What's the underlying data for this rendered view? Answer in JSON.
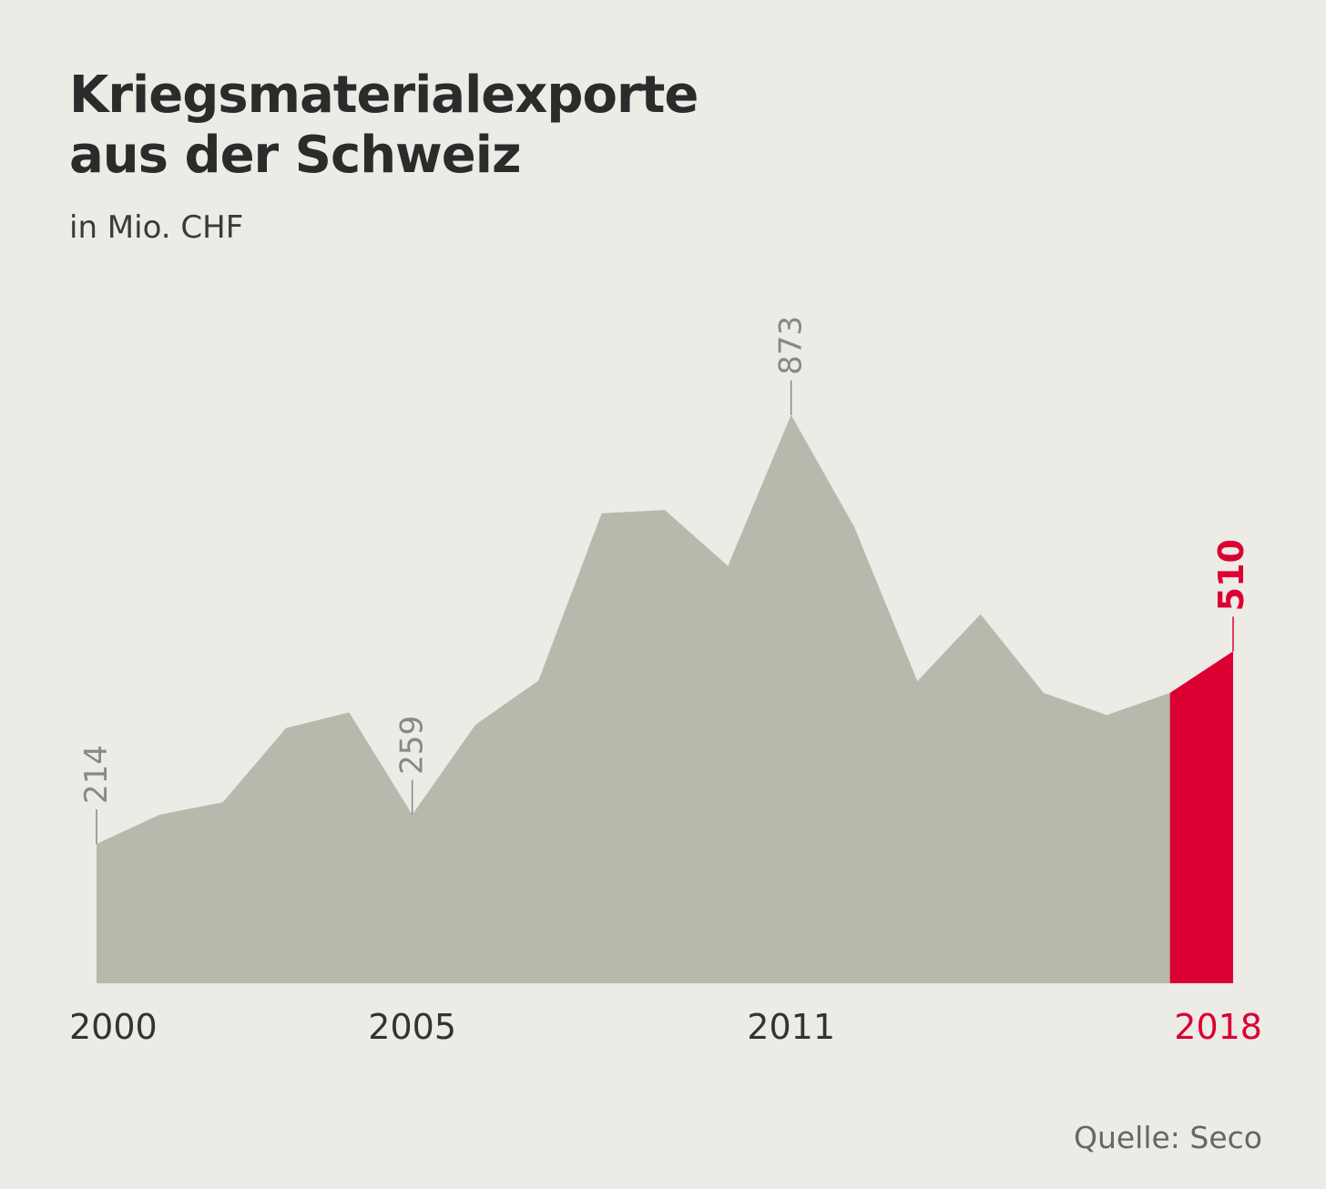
{
  "chart_data": {
    "type": "area",
    "title_lines": [
      "Kriegsmaterialexporte",
      "aus der Schweiz"
    ],
    "subtitle": "in Mio. CHF",
    "x": [
      2000,
      2001,
      2002,
      2003,
      2004,
      2005,
      2006,
      2007,
      2008,
      2009,
      2010,
      2011,
      2012,
      2013,
      2014,
      2015,
      2016,
      2017,
      2018
    ],
    "values": [
      214,
      259,
      278,
      392,
      416,
      259,
      397,
      465,
      722,
      727,
      641,
      873,
      701,
      464,
      567,
      446,
      412,
      446,
      510
    ],
    "ylim": [
      0,
      1000
    ],
    "x_ticks": [
      {
        "label": "2000",
        "year": 2000,
        "highlight": false
      },
      {
        "label": "2005",
        "year": 2005,
        "highlight": false
      },
      {
        "label": "2011",
        "year": 2011,
        "highlight": false
      },
      {
        "label": "2018",
        "year": 2018,
        "highlight": true
      }
    ],
    "annotations": [
      {
        "year": 2000,
        "label": "214",
        "highlight": false
      },
      {
        "year": 2005,
        "label": "259",
        "highlight": false
      },
      {
        "year": 2011,
        "label": "873",
        "highlight": false
      },
      {
        "year": 2018,
        "label": "510",
        "highlight": true
      }
    ],
    "highlight_segment": {
      "from": 2017,
      "to": 2018
    },
    "source": "Quelle: Seco"
  },
  "colors": {
    "background": "#ecebe6",
    "area": "#b9b8ac",
    "highlight": "#dc0032",
    "annotation": "#888888",
    "tick": "#333333"
  }
}
